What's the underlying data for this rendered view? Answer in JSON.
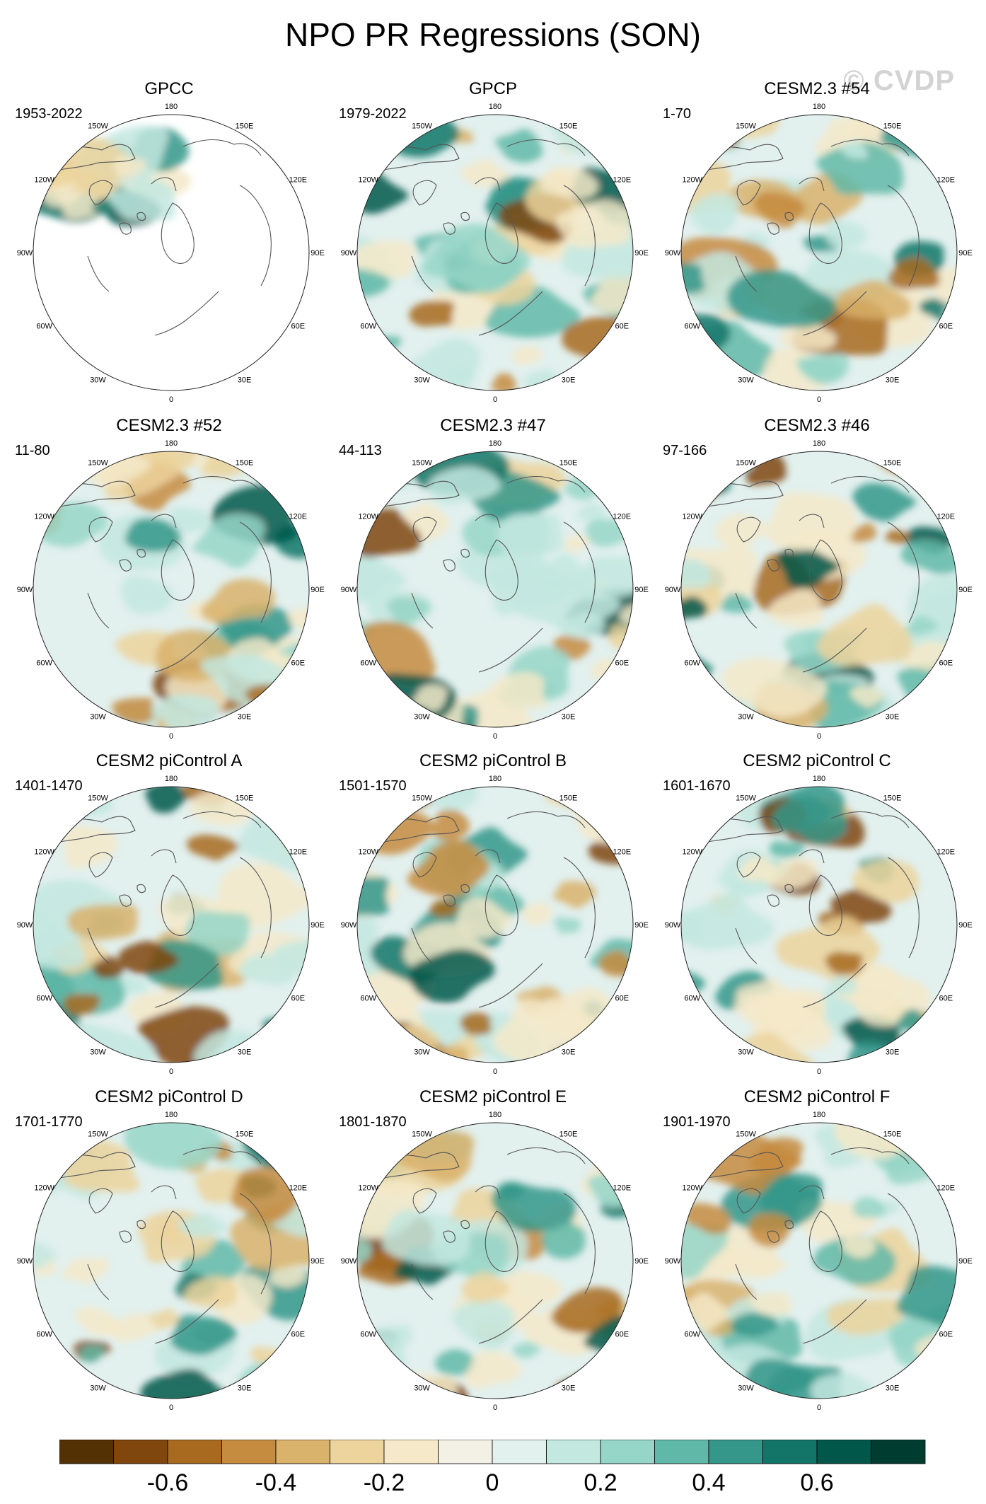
{
  "title": "NPO PR Regressions (SON)",
  "watermark": "© CVDP",
  "longitude_labels": [
    "180",
    "150E",
    "120E",
    "90E",
    "60E",
    "30E",
    "0",
    "30W",
    "60W",
    "90W",
    "120W",
    "150W"
  ],
  "chart_data": {
    "type": "heatmap",
    "projection": "north polar stereographic",
    "panels": [
      {
        "title": "GPCC",
        "period": "1953-2022"
      },
      {
        "title": "GPCP",
        "period": "1979-2022"
      },
      {
        "title": "CESM2.3 #54",
        "period": "1-70"
      },
      {
        "title": "CESM2.3 #52",
        "period": "11-80"
      },
      {
        "title": "CESM2.3 #47",
        "period": "44-113"
      },
      {
        "title": "CESM2.3 #46",
        "period": "97-166"
      },
      {
        "title": "CESM2 piControl A",
        "period": "1401-1470"
      },
      {
        "title": "CESM2 piControl B",
        "period": "1501-1570"
      },
      {
        "title": "CESM2 piControl C",
        "period": "1601-1670"
      },
      {
        "title": "CESM2 piControl D",
        "period": "1701-1770"
      },
      {
        "title": "CESM2 piControl E",
        "period": "1801-1870"
      },
      {
        "title": "CESM2 piControl F",
        "period": "1901-1970"
      }
    ],
    "colorbar": {
      "levels": [
        -0.7,
        -0.6,
        -0.5,
        -0.4,
        -0.3,
        -0.2,
        -0.1,
        0,
        0.1,
        0.2,
        0.3,
        0.4,
        0.5,
        0.6,
        0.7
      ],
      "tick_labels": [
        "-0.6",
        "-0.4",
        "-0.2",
        "0",
        "0.2",
        "0.4",
        "0.6"
      ],
      "colors": [
        "#543005",
        "#7f470e",
        "#a76a1e",
        "#c58b3e",
        "#d9b26b",
        "#ecd49c",
        "#f5e9c9",
        "#f3f1e6",
        "#e2f0ee",
        "#c3e8e0",
        "#96d6c8",
        "#60b9a8",
        "#34978a",
        "#137568",
        "#01574a",
        "#003c30"
      ]
    }
  }
}
